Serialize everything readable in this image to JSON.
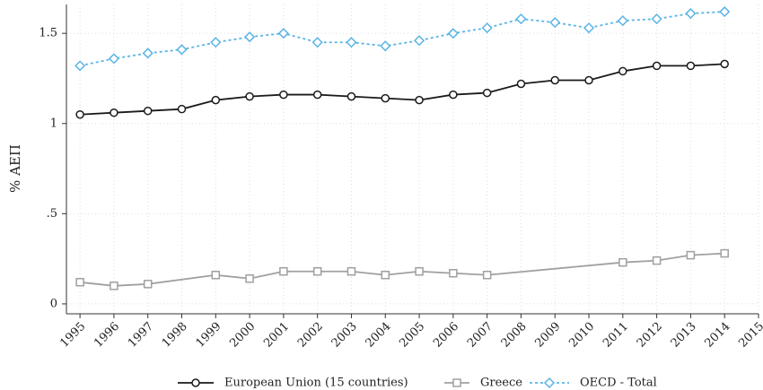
{
  "chart_data": {
    "type": "line",
    "ylabel": "% ΑΕΠ",
    "xlim": [
      1994.6,
      2015
    ],
    "ylim": [
      -0.055,
      1.66
    ],
    "xticks": [
      1995,
      1996,
      1997,
      1998,
      1999,
      2000,
      2001,
      2002,
      2003,
      2004,
      2005,
      2006,
      2007,
      2008,
      2009,
      2010,
      2011,
      2012,
      2013,
      2014,
      2015
    ],
    "yticks": [
      0,
      {
        "value": 0.5,
        "label": ".5"
      },
      1,
      1.5
    ],
    "grid": true,
    "series": [
      {
        "name": "European Union (15 countries)",
        "color": "#1a1a1a",
        "marker": "circle",
        "dashed": false,
        "x": [
          1995,
          1996,
          1997,
          1998,
          1999,
          2000,
          2001,
          2002,
          2003,
          2004,
          2005,
          2006,
          2007,
          2008,
          2009,
          2010,
          2011,
          2012,
          2013,
          2014
        ],
        "values": [
          1.05,
          1.06,
          1.07,
          1.08,
          1.13,
          1.15,
          1.16,
          1.16,
          1.15,
          1.14,
          1.13,
          1.16,
          1.17,
          1.22,
          1.24,
          1.24,
          1.29,
          1.32,
          1.32,
          1.33
        ]
      },
      {
        "name": "Greece",
        "color": "#a0a0a0",
        "marker": "square",
        "dashed": false,
        "x": [
          1995,
          1996,
          1997,
          1999,
          2000,
          2001,
          2002,
          2003,
          2004,
          2005,
          2006,
          2007,
          2011,
          2012,
          2013,
          2014
        ],
        "values": [
          0.12,
          0.1,
          0.11,
          0.16,
          0.14,
          0.18,
          0.18,
          0.18,
          0.16,
          0.18,
          0.17,
          0.16,
          0.23,
          0.24,
          0.27,
          0.28
        ]
      },
      {
        "name": "OECD - Total",
        "color": "#5ab4e5",
        "marker": "diamond",
        "dashed": true,
        "x": [
          1995,
          1996,
          1997,
          1998,
          1999,
          2000,
          2001,
          2002,
          2003,
          2004,
          2005,
          2006,
          2007,
          2008,
          2009,
          2010,
          2011,
          2012,
          2013,
          2014
        ],
        "values": [
          1.32,
          1.36,
          1.39,
          1.41,
          1.45,
          1.48,
          1.5,
          1.45,
          1.45,
          1.43,
          1.46,
          1.5,
          1.53,
          1.58,
          1.56,
          1.53,
          1.57,
          1.58,
          1.61,
          1.62
        ]
      }
    ]
  }
}
